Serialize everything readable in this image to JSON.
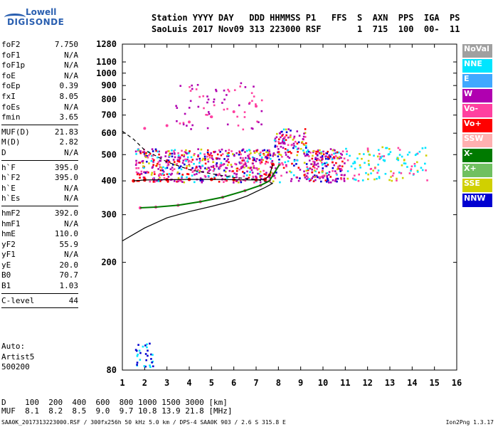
{
  "logo": {
    "line1": "Lowell",
    "line2": "DIGISONDE"
  },
  "header": {
    "line1": "Station YYYY DAY   DDD HHMMSS P1   FFS  S  AXN  PPS  IGA  PS",
    "line2": "SaoLuis 2017 Nov09 313 223000 RSF       1  715  100  00-  11"
  },
  "params": [
    {
      "label": "foF2",
      "value": "7.750"
    },
    {
      "label": "foF1",
      "value": "N/A"
    },
    {
      "label": "foF1p",
      "value": "N/A"
    },
    {
      "label": "foE",
      "value": "N/A"
    },
    {
      "label": "foEp",
      "value": "0.39"
    },
    {
      "label": "fxI",
      "value": "8.05"
    },
    {
      "label": "foEs",
      "value": "N/A"
    },
    {
      "label": "fmin",
      "value": "3.65"
    },
    {
      "sep": true
    },
    {
      "label": "MUF(D)",
      "value": "21.83"
    },
    {
      "label": "M(D)",
      "value": "2.82"
    },
    {
      "label": "D",
      "value": "N/A"
    },
    {
      "sep": true
    },
    {
      "label": "h`F",
      "value": "395.0"
    },
    {
      "label": "h`F2",
      "value": "395.0"
    },
    {
      "label": "h`E",
      "value": "N/A"
    },
    {
      "label": "h`Es",
      "value": "N/A"
    },
    {
      "sep": true
    },
    {
      "label": "hmF2",
      "value": "392.0"
    },
    {
      "label": "hmF1",
      "value": "N/A"
    },
    {
      "label": "hmE",
      "value": "110.0"
    },
    {
      "label": "yF2",
      "value": "55.9"
    },
    {
      "label": "yF1",
      "value": "N/A"
    },
    {
      "label": "yE",
      "value": "20.0"
    },
    {
      "label": "B0",
      "value": "70.7"
    },
    {
      "label": "B1",
      "value": "1.03"
    },
    {
      "sep": true
    },
    {
      "label": "C-level",
      "value": "44"
    },
    {
      "sep": true
    }
  ],
  "auto": {
    "line1": "Auto:",
    "line2": "Artist5",
    "line3": "500200"
  },
  "legend": [
    {
      "label": "NoVal",
      "color": "#a0a0a0"
    },
    {
      "label": "NNE",
      "color": "#00e5ff"
    },
    {
      "label": "E",
      "color": "#40a8ff"
    },
    {
      "label": "W",
      "color": "#b000b0"
    },
    {
      "label": "Vo-",
      "color": "#ff40a0"
    },
    {
      "label": "Vo+",
      "color": "#ff0000"
    },
    {
      "label": "SSW",
      "color": "#ffb0b0"
    },
    {
      "label": "X-",
      "color": "#007a00"
    },
    {
      "label": "X+",
      "color": "#70c060"
    },
    {
      "label": "SSE",
      "color": "#d0d000"
    },
    {
      "label": "NNW",
      "color": "#0000d0"
    }
  ],
  "muf_table": {
    "line1": "D    100  200  400  600  800 1000 1500 3000 [km]",
    "line2": "MUF  8.1  8.2  8.5  9.0  9.7 10.8 13.9 21.8 [MHz]"
  },
  "footer": "SAA0K_2017313223000.RSF / 300fx256h 50 kHz 5.0 km / DPS-4 SAA0K 903 / 2.6 S 315.8 E",
  "version": "Ion2Png 1.3.17",
  "chart_data": {
    "type": "scatter",
    "title": "",
    "xlabel": "",
    "ylabel": "",
    "xlim": [
      1,
      16
    ],
    "ylim": [
      80,
      1280
    ],
    "x_ticks": [
      1,
      2,
      3,
      4,
      5,
      6,
      7,
      8,
      9,
      10,
      11,
      12,
      13,
      14,
      15,
      16
    ],
    "y_ticks": [
      80,
      200,
      300,
      400,
      500,
      600,
      700,
      800,
      900,
      1000,
      1100,
      1280
    ],
    "y_scale": "logarithmic",
    "grid": false,
    "trace_o": [
      [
        1.5,
        400
      ],
      [
        2,
        403
      ],
      [
        3,
        404
      ],
      [
        4,
        405
      ],
      [
        5,
        405
      ],
      [
        6,
        404
      ],
      [
        7,
        403
      ],
      [
        7.4,
        405
      ],
      [
        7.6,
        420
      ],
      [
        7.75,
        460
      ]
    ],
    "trace_x": [
      [
        1.8,
        318
      ],
      [
        2.5,
        320
      ],
      [
        3.5,
        325
      ],
      [
        4.5,
        335
      ],
      [
        5.5,
        348
      ],
      [
        6.5,
        368
      ],
      [
        7.2,
        385
      ],
      [
        7.6,
        400
      ],
      [
        8.05,
        460
      ]
    ],
    "second_hop": [
      [
        2,
        625
      ],
      [
        3,
        640
      ],
      [
        4,
        660
      ],
      [
        5,
        690
      ],
      [
        6,
        720
      ],
      [
        7,
        755
      ]
    ],
    "profile_curve": [
      [
        1,
        240
      ],
      [
        2,
        268
      ],
      [
        3,
        292
      ],
      [
        4,
        308
      ],
      [
        5,
        322
      ],
      [
        6,
        338
      ],
      [
        6.6,
        352
      ],
      [
        7,
        365
      ],
      [
        7.4,
        378
      ],
      [
        7.75,
        392
      ]
    ],
    "dashed_curve": [
      [
        1,
        610
      ],
      [
        1.5,
        570
      ],
      [
        2,
        520
      ],
      [
        2.5,
        495
      ],
      [
        3,
        470
      ],
      [
        3.5,
        455
      ],
      [
        4,
        440
      ],
      [
        5,
        425
      ],
      [
        6,
        412
      ],
      [
        7,
        405
      ],
      [
        7.75,
        392
      ]
    ]
  }
}
